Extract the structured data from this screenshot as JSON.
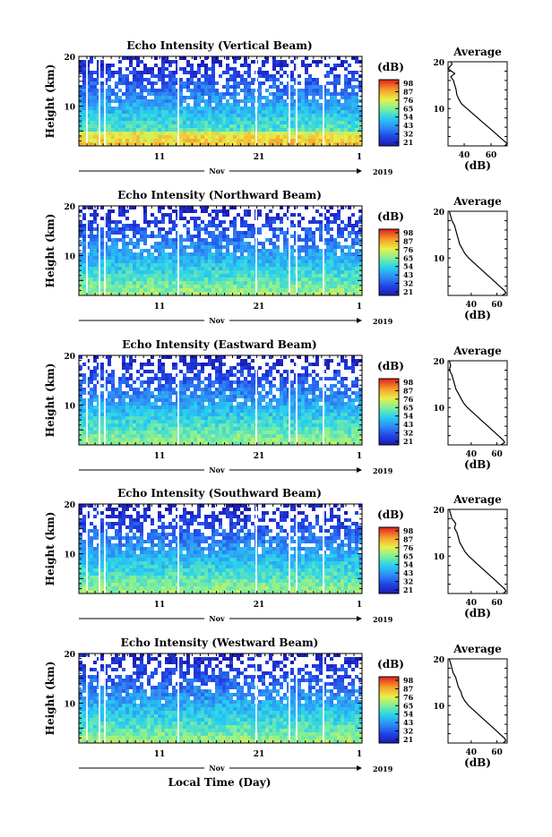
{
  "x_axis_label": "Local Time (Day)",
  "chart_data": [
    {
      "type": "heatmap",
      "title": "Echo Intensity (Vertical Beam)",
      "ylabel": "Height (km)",
      "ylim": [
        2,
        20
      ],
      "yticks": [
        "20",
        "10"
      ],
      "x_ticks": [
        "11",
        "21",
        "1"
      ],
      "x_month": "Nov",
      "x_year": "2019",
      "colorbar": {
        "unit": "(dB)",
        "ticks": [
          "98",
          "87",
          "76",
          "65",
          "54",
          "43",
          "32",
          "21"
        ],
        "range": [
          21,
          98
        ]
      },
      "profile": {
        "title": "Average",
        "xlabel": "(dB)",
        "xticks": [
          "40",
          "60"
        ],
        "xlim": [
          28,
          72
        ],
        "yticks": [
          "20",
          "10"
        ],
        "points": [
          [
            30,
            20
          ],
          [
            31,
            19.5
          ],
          [
            28,
            18.5
          ],
          [
            33,
            17.5
          ],
          [
            30,
            16.8
          ],
          [
            32,
            16
          ],
          [
            33,
            15
          ],
          [
            34,
            14
          ],
          [
            34.5,
            13
          ],
          [
            36,
            12
          ],
          [
            38,
            11
          ],
          [
            42,
            10
          ],
          [
            46,
            9
          ],
          [
            50,
            8
          ],
          [
            54,
            7
          ],
          [
            58,
            6
          ],
          [
            62,
            5
          ],
          [
            66,
            4
          ],
          [
            70,
            3
          ],
          [
            72,
            2.5
          ],
          [
            70,
            2
          ]
        ]
      }
    },
    {
      "type": "heatmap",
      "title": "Echo Intensity (Northward Beam)",
      "ylabel": "Height (km)",
      "ylim": [
        2,
        20
      ],
      "yticks": [
        "20",
        "10"
      ],
      "x_ticks": [
        "11",
        "21",
        "1"
      ],
      "x_month": "Nov",
      "x_year": "2019",
      "colorbar": {
        "unit": "(dB)",
        "ticks": [
          "98",
          "87",
          "76",
          "65",
          "54",
          "43",
          "32",
          "21"
        ],
        "range": [
          21,
          98
        ]
      },
      "profile": {
        "title": "Average",
        "xlabel": "(dB)",
        "xticks": [
          "40",
          "60"
        ],
        "xlim": [
          22,
          68
        ],
        "yticks": [
          "20",
          "10"
        ],
        "points": [
          [
            23,
            20
          ],
          [
            24,
            19
          ],
          [
            25,
            18
          ],
          [
            27,
            17
          ],
          [
            28,
            16
          ],
          [
            29,
            15
          ],
          [
            30,
            14
          ],
          [
            31,
            13
          ],
          [
            33,
            12
          ],
          [
            35,
            11
          ],
          [
            38,
            10
          ],
          [
            42,
            9
          ],
          [
            46,
            8
          ],
          [
            50,
            7
          ],
          [
            54,
            6
          ],
          [
            58,
            5
          ],
          [
            62,
            4
          ],
          [
            66,
            3
          ],
          [
            67,
            2.5
          ],
          [
            64,
            2
          ]
        ]
      }
    },
    {
      "type": "heatmap",
      "title": "Echo Intensity (Eastward Beam)",
      "ylabel": "Height (km)",
      "ylim": [
        2,
        20
      ],
      "yticks": [
        "20",
        "10"
      ],
      "x_ticks": [
        "11",
        "21",
        "1"
      ],
      "x_month": "Nov",
      "x_year": "2019",
      "colorbar": {
        "unit": "(dB)",
        "ticks": [
          "98",
          "87",
          "76",
          "65",
          "54",
          "43",
          "32",
          "21"
        ],
        "range": [
          21,
          98
        ]
      },
      "profile": {
        "title": "Average",
        "xlabel": "(dB)",
        "xticks": [
          "40",
          "60"
        ],
        "xlim": [
          22,
          68
        ],
        "yticks": [
          "20",
          "10"
        ],
        "points": [
          [
            23,
            20
          ],
          [
            24,
            19
          ],
          [
            23,
            18
          ],
          [
            25,
            17
          ],
          [
            26,
            16
          ],
          [
            27,
            15
          ],
          [
            28,
            14
          ],
          [
            30,
            13
          ],
          [
            32,
            12
          ],
          [
            34,
            11
          ],
          [
            37,
            10
          ],
          [
            41,
            9
          ],
          [
            45,
            8
          ],
          [
            49,
            7
          ],
          [
            53,
            6
          ],
          [
            57,
            5
          ],
          [
            61,
            4
          ],
          [
            65,
            3
          ],
          [
            66,
            2.5
          ],
          [
            63,
            2
          ]
        ]
      }
    },
    {
      "type": "heatmap",
      "title": "Echo Intensity (Southward Beam)",
      "ylabel": "Height (km)",
      "ylim": [
        2,
        20
      ],
      "yticks": [
        "20",
        "10"
      ],
      "x_ticks": [
        "11",
        "21",
        "1"
      ],
      "x_month": "Nov",
      "x_year": "2019",
      "colorbar": {
        "unit": "(dB)",
        "ticks": [
          "98",
          "87",
          "76",
          "65",
          "54",
          "43",
          "32",
          "21"
        ],
        "range": [
          21,
          98
        ]
      },
      "profile": {
        "title": "Average",
        "xlabel": "(dB)",
        "xticks": [
          "40",
          "60"
        ],
        "xlim": [
          22,
          68
        ],
        "yticks": [
          "20",
          "10"
        ],
        "points": [
          [
            23,
            20
          ],
          [
            24,
            19
          ],
          [
            25,
            18
          ],
          [
            28,
            17
          ],
          [
            27,
            16
          ],
          [
            29,
            15
          ],
          [
            30,
            14
          ],
          [
            31,
            13
          ],
          [
            33,
            12
          ],
          [
            35,
            11
          ],
          [
            38,
            10
          ],
          [
            42,
            9
          ],
          [
            46,
            8
          ],
          [
            50,
            7
          ],
          [
            54,
            6
          ],
          [
            58,
            5
          ],
          [
            62,
            4
          ],
          [
            66,
            3
          ],
          [
            67,
            2.5
          ],
          [
            65,
            2
          ]
        ]
      }
    },
    {
      "type": "heatmap",
      "title": "Echo Intensity (Westward Beam)",
      "ylabel": "Height (km)",
      "ylim": [
        2,
        20
      ],
      "yticks": [
        "20",
        "10"
      ],
      "x_ticks": [
        "11",
        "21",
        "1"
      ],
      "x_month": "Nov",
      "x_year": "2019",
      "colorbar": {
        "unit": "(dB)",
        "ticks": [
          "98",
          "87",
          "76",
          "65",
          "54",
          "43",
          "32",
          "21"
        ],
        "range": [
          21,
          98
        ]
      },
      "profile": {
        "title": "Average",
        "xlabel": "(dB)",
        "xticks": [
          "40",
          "60"
        ],
        "xlim": [
          22,
          68
        ],
        "yticks": [
          "20",
          "10"
        ],
        "points": [
          [
            23,
            20
          ],
          [
            24,
            19
          ],
          [
            25,
            18
          ],
          [
            26,
            17
          ],
          [
            28,
            16
          ],
          [
            29,
            15
          ],
          [
            30,
            14
          ],
          [
            32,
            13
          ],
          [
            33,
            12
          ],
          [
            35,
            11
          ],
          [
            38,
            10
          ],
          [
            42,
            9
          ],
          [
            46,
            8
          ],
          [
            50,
            7
          ],
          [
            54,
            6
          ],
          [
            58,
            5
          ],
          [
            62,
            4
          ],
          [
            66,
            3
          ],
          [
            67,
            2.5
          ],
          [
            65,
            2
          ]
        ]
      }
    }
  ]
}
